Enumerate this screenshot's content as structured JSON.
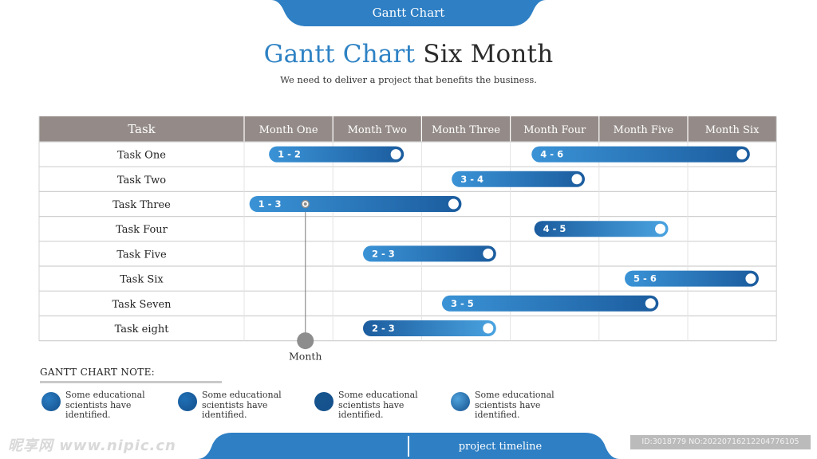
{
  "header": {
    "tab_label": "Gantt Chart",
    "title_accent": "Gantt Chart",
    "title_rest": "Six Month",
    "subtitle": "We need to deliver a project that benefits the business."
  },
  "colors": {
    "accent": "#2e82c4",
    "header_bg": "#948b88",
    "bar_dark": "#1f5fa0",
    "bar_light": "#4ea3de"
  },
  "chart_data": {
    "type": "gantt",
    "task_header": "Task",
    "months": [
      "Month One",
      "Month Two",
      "Month Three",
      "Month Four",
      "Month Five",
      "Month Six"
    ],
    "tasks": [
      {
        "name": "Task One",
        "bars": [
          {
            "label": "1 - 2",
            "start": 0.28,
            "end": 1.8
          },
          {
            "label": "4 - 6",
            "start": 3.24,
            "end": 5.7
          }
        ]
      },
      {
        "name": "Task Two",
        "bars": [
          {
            "label": "3 - 4",
            "start": 2.34,
            "end": 3.84
          }
        ]
      },
      {
        "name": "Task Three",
        "bars": [
          {
            "label": "1 - 3",
            "start": 0.06,
            "end": 2.45
          }
        ]
      },
      {
        "name": "Task Four",
        "bars": [
          {
            "label": "4 - 5",
            "start": 3.27,
            "end": 4.78
          }
        ]
      },
      {
        "name": "Task Five",
        "bars": [
          {
            "label": "2 - 3",
            "start": 1.34,
            "end": 2.84
          }
        ]
      },
      {
        "name": "Task Six",
        "bars": [
          {
            "label": "5 - 6",
            "start": 4.29,
            "end": 5.8
          }
        ]
      },
      {
        "name": "Task Seven",
        "bars": [
          {
            "label": "3 - 5",
            "start": 2.23,
            "end": 4.67
          }
        ]
      },
      {
        "name": "Task eight",
        "bars": [
          {
            "label": "2 - 3",
            "start": 1.34,
            "end": 2.84
          }
        ]
      }
    ],
    "marker": {
      "label": "Month",
      "position": 0.69
    }
  },
  "notes": {
    "title": "GANTT CHART  NOTE:",
    "items": [
      {
        "text": "Some educational scientists have identified.",
        "color": "#2a7cc2"
      },
      {
        "text": "Some educational scientists have identified.",
        "color": "#1f6fb5"
      },
      {
        "text": "Some educational scientists have identified.",
        "color": "#17558f"
      },
      {
        "text": "Some educational scientists have identified.",
        "color": "#4fa2dc"
      }
    ]
  },
  "footer": {
    "label": "project timeline"
  },
  "watermark": {
    "logo": "昵享网 www.nipic.cn",
    "id": "ID:3018779 NO:20220716212204776105"
  }
}
